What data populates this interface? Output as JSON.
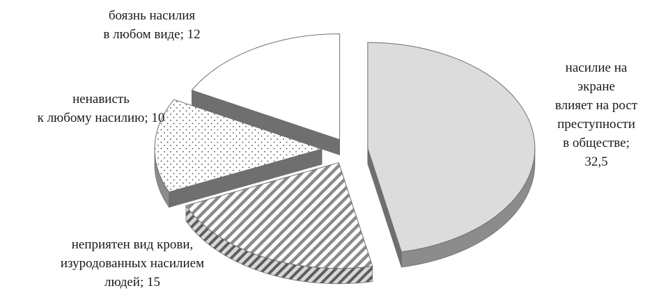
{
  "chart_data": {
    "type": "pie",
    "title": "",
    "slices": [
      {
        "label_lines": [
          "насилие на",
          "экране",
          "влияет на рост",
          "преступности",
          "в обществе;",
          "32,5"
        ],
        "value": 32.5,
        "pattern": "solid-light"
      },
      {
        "label_lines": [
          "неприятен  вид крови,",
          "изуродованных  насилием",
          "людей; 15"
        ],
        "value": 15,
        "pattern": "diagonal-stripes"
      },
      {
        "label_lines": [
          "ненависть",
          "к любому насилию;  10"
        ],
        "value": 10,
        "pattern": "dots"
      },
      {
        "label_lines": [
          "боязнь насилия",
          "в любом виде; 12"
        ],
        "value": 12,
        "pattern": "white"
      }
    ]
  },
  "colors": {
    "slice_top": "#dcdcdc",
    "slice_side": "#8c8c8c",
    "stripe": "#8a8a8a",
    "dots": "#444444",
    "outline": "#6e6e6e",
    "text": "#1a1a1a"
  }
}
